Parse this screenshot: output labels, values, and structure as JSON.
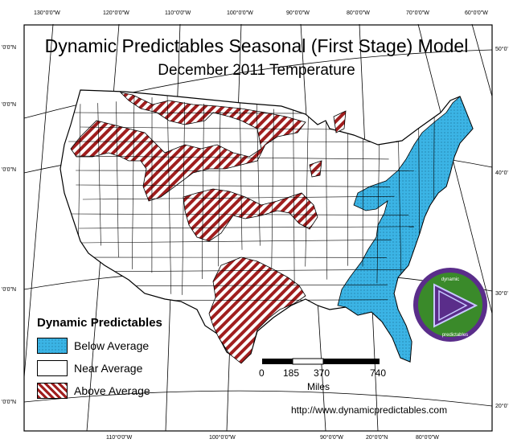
{
  "title": "Dynamic Predictables Seasonal (First Stage) Model",
  "subtitle": "December 2011 Temperature",
  "graticule": {
    "top": [
      "130°0'0\"W",
      "120°0'0\"W",
      "110°0'0\"W",
      "100°0'0\"W",
      "90°0'0\"W",
      "80°0'0\"W",
      "70°0'0\"W",
      "60°0'0\"W"
    ],
    "bottom": [
      "110°0'0\"W",
      "100°0'0\"W",
      "90°0'0\"W",
      "80°0'0\"W"
    ],
    "bottom2": [
      "20°0'0\"N"
    ],
    "left": [
      "'0'0\"N",
      "'0'0\"N",
      "'0'0\"N",
      "'0'0\"N",
      "'0'0\"N"
    ],
    "right": [
      "50°0'",
      "40°0'",
      "30°0'",
      "20°0'"
    ]
  },
  "legend": {
    "title": "Dynamic Predictables",
    "items": [
      {
        "label": "Below Average",
        "color": "#3bb4e5",
        "pattern": "dots"
      },
      {
        "label": "Near Average",
        "color": "#ffffff",
        "pattern": "none"
      },
      {
        "label": "Above Average",
        "color": "#a01e1e",
        "pattern": "hatch"
      }
    ]
  },
  "scale_bar": {
    "labels": [
      "0",
      "185",
      "370",
      "740"
    ],
    "unit": "Miles"
  },
  "logo": {
    "top_text": "dynamic",
    "bottom_text": "predictables"
  },
  "url": "http://www.dynamicpredictables.com",
  "map": {
    "colors": {
      "below": "#3bb4e5",
      "above": "#a01e1e",
      "near": "#ffffff",
      "outline": "#000000"
    }
  }
}
